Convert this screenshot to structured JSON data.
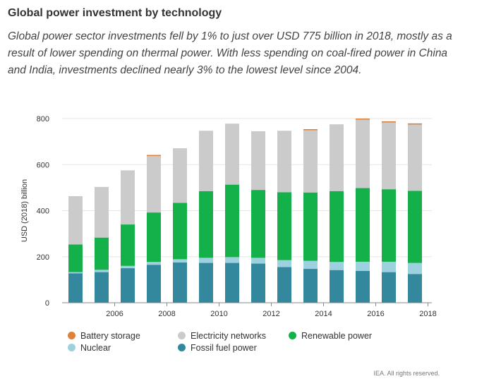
{
  "title": "Global power investment by technology",
  "subtitle": "Global power sector investments fell by 1% to just over USD 775 billion in 2018, mostly as a result of lower spending on thermal power. With less spending on coal-fired power in China and India, investments declined nearly 3% to the lowest level since 2004.",
  "footer": "IEA. All rights reserved.",
  "chart_data": {
    "type": "bar",
    "stacked": true,
    "categories": [
      "2005",
      "2006",
      "2007",
      "2008",
      "2009",
      "2010",
      "2011",
      "2012",
      "2013",
      "2014",
      "2015",
      "2016",
      "2017",
      "2018"
    ],
    "x_tick_labels": [
      "2006",
      "2008",
      "2010",
      "2012",
      "2014",
      "2016",
      "2018"
    ],
    "ylabel": "USD (2018) billion",
    "ylim": [
      0,
      800
    ],
    "yticks": [
      0,
      200,
      400,
      600,
      800
    ],
    "grid": true,
    "legend_position": "bottom",
    "series": [
      {
        "name": "Fossil fuel power",
        "color": "#34889e",
        "values": [
          128,
          133,
          150,
          165,
          175,
          173,
          173,
          170,
          155,
          147,
          142,
          138,
          133,
          125
        ]
      },
      {
        "name": "Nuclear",
        "color": "#9ed1e0",
        "values": [
          5,
          10,
          10,
          12,
          14,
          22,
          25,
          25,
          30,
          35,
          35,
          40,
          45,
          48
        ]
      },
      {
        "name": "Renewable power",
        "color": "#14b04a",
        "values": [
          120,
          140,
          180,
          215,
          245,
          290,
          315,
          295,
          295,
          297,
          308,
          320,
          315,
          313
        ]
      },
      {
        "name": "Electricity networks",
        "color": "#cbcbcb",
        "values": [
          210,
          220,
          235,
          245,
          237,
          262,
          265,
          255,
          267,
          270,
          290,
          297,
          290,
          288
        ]
      },
      {
        "name": "Battery storage",
        "color": "#dd8339",
        "values": [
          0,
          0,
          0,
          5,
          0,
          0,
          0,
          0,
          0,
          5,
          0,
          5,
          5,
          5
        ]
      }
    ]
  },
  "legend": [
    {
      "label": "Battery storage",
      "color": "#dd8339"
    },
    {
      "label": "Electricity networks",
      "color": "#cbcbcb"
    },
    {
      "label": "Renewable power",
      "color": "#14b04a"
    },
    {
      "label": "Nuclear",
      "color": "#9ed1e0"
    },
    {
      "label": "Fossil fuel power",
      "color": "#34889e"
    }
  ],
  "axis_color": "#888888",
  "grid_color": "#e6e6e6"
}
